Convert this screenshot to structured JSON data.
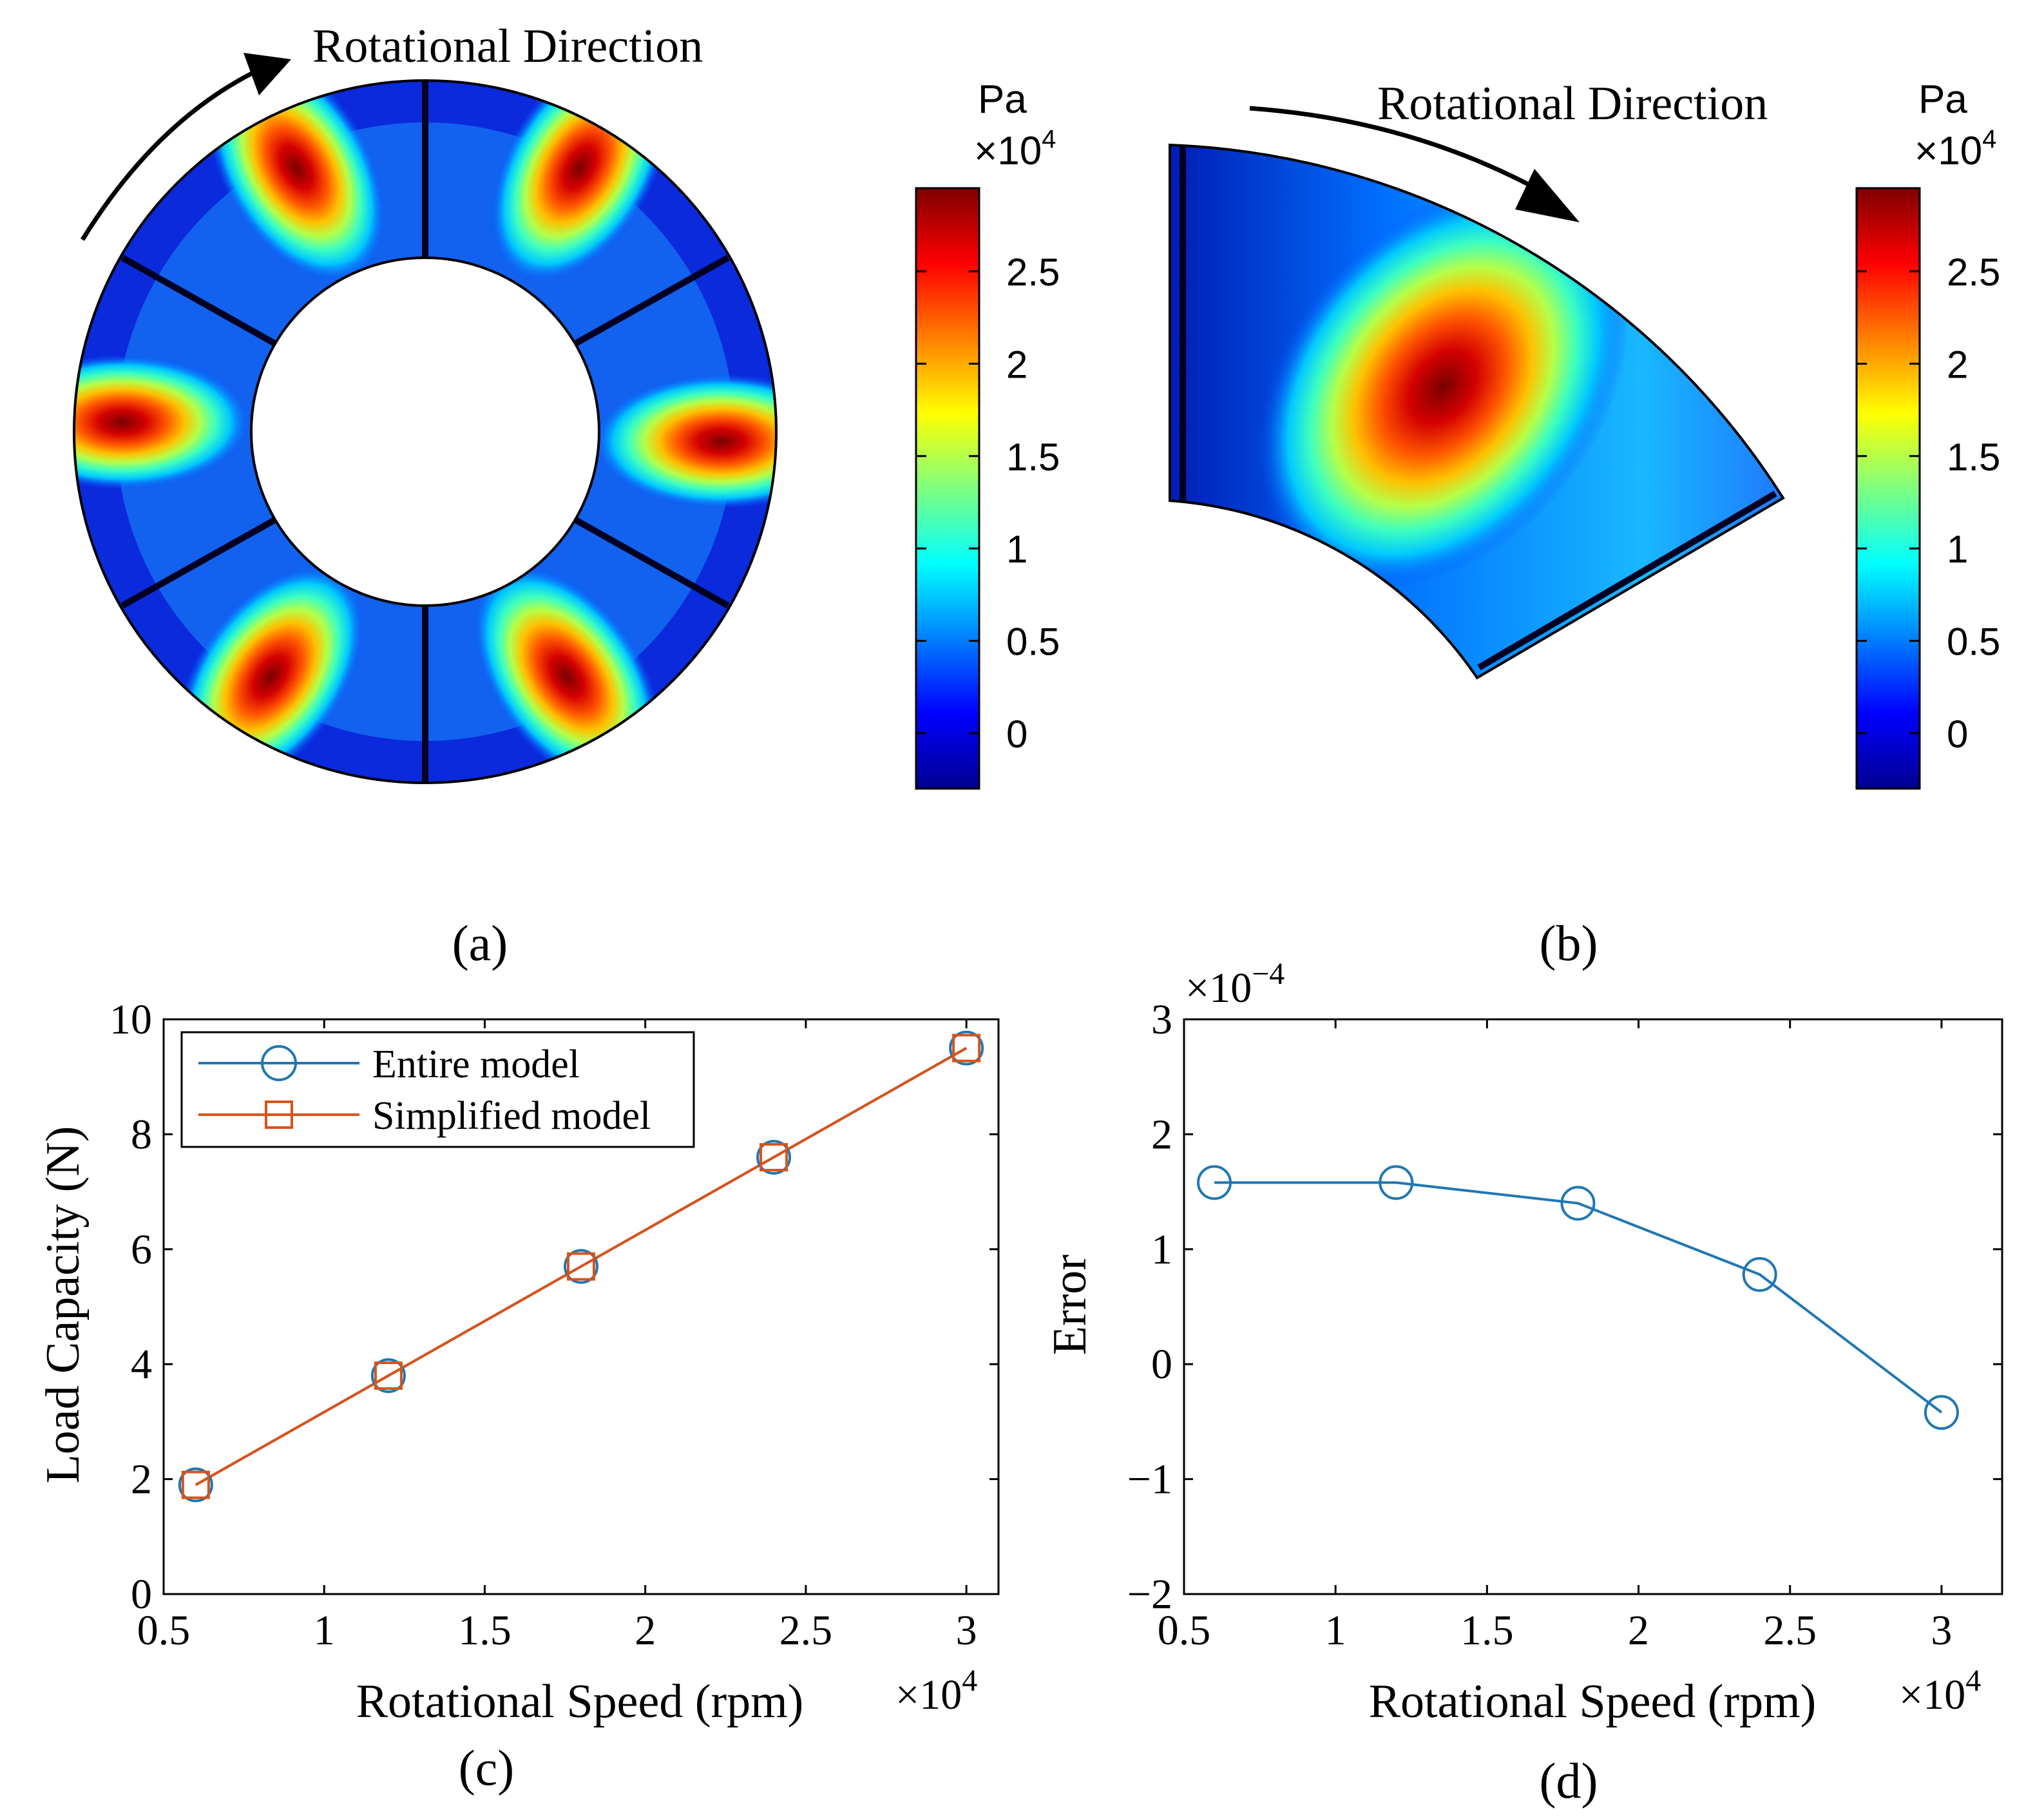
{
  "panel_a": {
    "title": "Rotational Direction",
    "caption": "(a)",
    "colorbar": {
      "unit": "Pa",
      "multiplier": "×10",
      "exponent": "4",
      "ticks": [
        "2.5",
        "2",
        "1.5",
        "1",
        "0.5",
        "0"
      ],
      "tick_values": [
        2.5,
        2,
        1.5,
        1,
        0.5,
        0
      ],
      "range": [
        -0.3,
        2.95
      ]
    }
  },
  "panel_b": {
    "title": "Rotational Direction",
    "caption": "(b)",
    "colorbar": {
      "unit": "Pa",
      "multiplier": "×10",
      "exponent": "4",
      "ticks": [
        "2.5",
        "2",
        "1.5",
        "1",
        "0.5",
        "0"
      ],
      "tick_values": [
        2.5,
        2,
        1.5,
        1,
        0.5,
        0
      ],
      "range": [
        -0.3,
        2.95
      ]
    }
  },
  "chart_data": [
    {
      "type": "line",
      "panel": "c",
      "caption": "(c)",
      "xlabel": "Rotational Speed (rpm)",
      "ylabel": "Load Capacity (N)",
      "x_multiplier": "×10",
      "x_exponent": "4",
      "xlim": [
        0.5,
        3.1
      ],
      "ylim": [
        0,
        10
      ],
      "xticks": [
        0.5,
        1,
        1.5,
        2,
        2.5,
        3
      ],
      "xtick_labels": [
        "0.5",
        "1",
        "1.5",
        "2",
        "2.5",
        "3"
      ],
      "yticks": [
        0,
        2,
        4,
        6,
        8,
        10
      ],
      "ytick_labels": [
        "0",
        "2",
        "4",
        "6",
        "8",
        "10"
      ],
      "legend": "top-left",
      "x": [
        0.6,
        1.2,
        1.8,
        2.4,
        3.0
      ],
      "series": [
        {
          "name": "Entire model",
          "marker": "circle",
          "color": "#1f77b4",
          "values": [
            1.9,
            3.8,
            5.7,
            7.6,
            9.5
          ]
        },
        {
          "name": "Simplified model",
          "marker": "square",
          "color": "#d95319",
          "values": [
            1.9,
            3.8,
            5.7,
            7.6,
            9.5
          ]
        }
      ]
    },
    {
      "type": "line",
      "panel": "d",
      "caption": "(d)",
      "xlabel": "Rotational Speed (rpm)",
      "ylabel": "Error",
      "x_multiplier": "×10",
      "x_exponent": "4",
      "y_multiplier": "×10",
      "y_exponent": "−4",
      "xlim": [
        0.5,
        3.2
      ],
      "ylim": [
        -2,
        3
      ],
      "xticks": [
        0.5,
        1,
        1.5,
        2,
        2.5,
        3
      ],
      "xtick_labels": [
        "0.5",
        "1",
        "1.5",
        "2",
        "2.5",
        "3"
      ],
      "yticks": [
        -2,
        -1,
        0,
        1,
        2,
        3
      ],
      "ytick_labels": [
        "−2",
        "−1",
        "0",
        "1",
        "2",
        "3"
      ],
      "x": [
        0.6,
        1.2,
        1.8,
        2.4,
        3.0
      ],
      "series": [
        {
          "name": "Error",
          "marker": "circle",
          "color": "#1f77b4",
          "values": [
            1.58,
            1.58,
            1.4,
            0.78,
            -0.42
          ]
        }
      ]
    }
  ]
}
